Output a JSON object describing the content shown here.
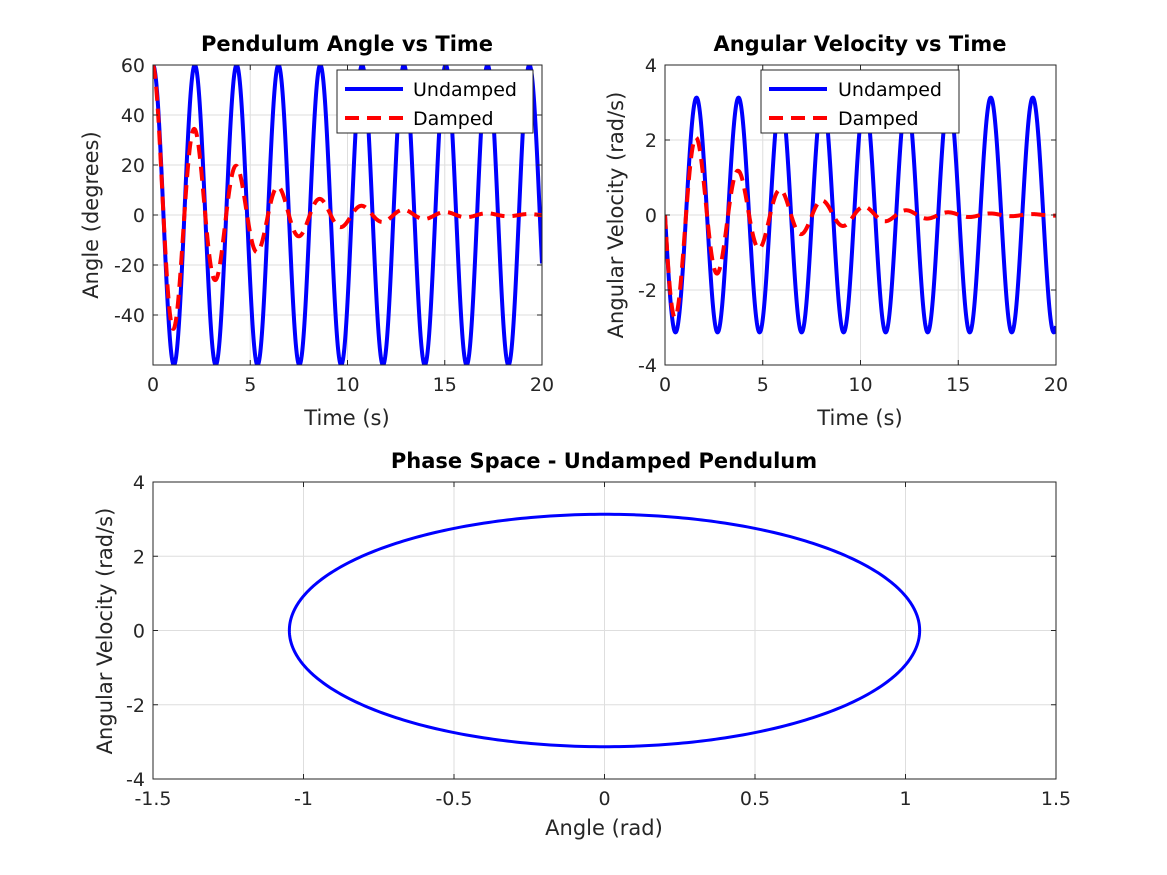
{
  "figure": {
    "background": "#ffffff",
    "colors": {
      "undamped": "#0000ff",
      "damped": "#ff0000",
      "grid": "#dedede",
      "axis": "#262626"
    }
  },
  "chart_data": [
    {
      "type": "line",
      "title": "Pendulum Angle vs Time",
      "xlabel": "Time (s)",
      "ylabel": "Angle (degrees)",
      "xlim": [
        0,
        20
      ],
      "ylim": [
        -60,
        60
      ],
      "xticks": [
        0,
        5,
        10,
        15,
        20
      ],
      "yticks": [
        -40,
        -20,
        0,
        20,
        40,
        60
      ],
      "xtick_labels": [
        "0",
        "5",
        "10",
        "15",
        "20"
      ],
      "ytick_labels": [
        "-40",
        "-20",
        "0",
        "20",
        "40",
        "60"
      ],
      "grid": true,
      "legend": {
        "position": "top-right",
        "entries": [
          "Undamped",
          "Damped"
        ]
      },
      "series": [
        {
          "name": "Undamped",
          "style": "solid",
          "color": "#0000ff",
          "model": "cosine",
          "amplitude": 60,
          "period": 2.15,
          "decay_rate": 0,
          "t_start": 0,
          "t_end": 20
        },
        {
          "name": "Damped",
          "style": "dashed",
          "color": "#ff0000",
          "model": "damped_cosine",
          "amplitude": 60,
          "period": 2.15,
          "decay_rate": 0.26,
          "t_start": 0,
          "t_end": 20
        }
      ]
    },
    {
      "type": "line",
      "title": "Angular Velocity vs Time",
      "xlabel": "Time (s)",
      "ylabel": "Angular Velocity (rad/s)",
      "xlim": [
        0,
        20
      ],
      "ylim": [
        -4,
        4
      ],
      "xticks": [
        0,
        5,
        10,
        15,
        20
      ],
      "yticks": [
        -4,
        -2,
        0,
        2,
        4
      ],
      "xtick_labels": [
        "0",
        "5",
        "10",
        "15",
        "20"
      ],
      "ytick_labels": [
        "-4",
        "-2",
        "0",
        "2",
        "4"
      ],
      "grid": true,
      "legend": {
        "position": "top-right",
        "entries": [
          "Undamped",
          "Damped"
        ]
      },
      "series": [
        {
          "name": "Undamped",
          "style": "solid",
          "color": "#0000ff",
          "model": "neg_sine",
          "amplitude": 3.13,
          "period": 2.15,
          "decay_rate": 0,
          "t_start": 0,
          "t_end": 20
        },
        {
          "name": "Damped",
          "style": "dashed",
          "color": "#ff0000",
          "model": "damped_neg_sine",
          "amplitude": 3.13,
          "period": 2.15,
          "decay_rate": 0.26,
          "t_start": 0,
          "t_end": 20
        }
      ]
    },
    {
      "type": "line",
      "title": "Phase Space - Undamped Pendulum",
      "xlabel": "Angle (rad)",
      "ylabel": "Angular Velocity (rad/s)",
      "xlim": [
        -1.5,
        1.5
      ],
      "ylim": [
        -4,
        4
      ],
      "xticks": [
        -1.5,
        -1,
        -0.5,
        0,
        0.5,
        1,
        1.5
      ],
      "yticks": [
        -4,
        -2,
        0,
        2,
        4
      ],
      "xtick_labels": [
        "-1.5",
        "-1",
        "-0.5",
        "0",
        "0.5",
        "1",
        "1.5"
      ],
      "ytick_labels": [
        "-4",
        "-2",
        "0",
        "2",
        "4"
      ],
      "grid": true,
      "series": [
        {
          "name": "Undamped",
          "style": "solid",
          "color": "#0000ff",
          "model": "ellipse",
          "x_amplitude": 1.047,
          "y_amplitude": 3.13
        }
      ]
    }
  ]
}
